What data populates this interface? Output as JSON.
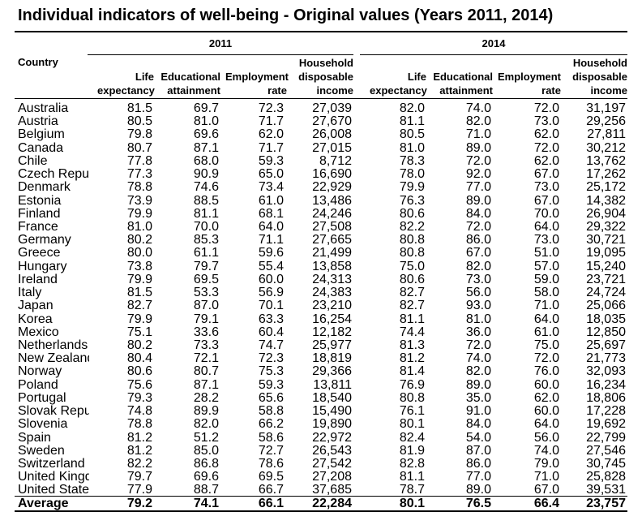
{
  "title": "Individual indicators of well-being - Original values (Years 2011, 2014)",
  "years": [
    "2011",
    "2014"
  ],
  "country_header": "Country",
  "column_headers": [
    [
      "Life",
      "expectancy"
    ],
    [
      "Educational",
      "attainment"
    ],
    [
      "Employment",
      "rate"
    ],
    [
      "Household",
      "disposable",
      "income"
    ]
  ],
  "rows": [
    [
      "Australia",
      "81.5",
      "69.7",
      "72.3",
      "27,039",
      "82.0",
      "74.0",
      "72.0",
      "31,197"
    ],
    [
      "Austria",
      "80.5",
      "81.0",
      "71.7",
      "27,670",
      "81.1",
      "82.0",
      "73.0",
      "29,256"
    ],
    [
      "Belgium",
      "79.8",
      "69.6",
      "62.0",
      "26,008",
      "80.5",
      "71.0",
      "62.0",
      "27,811"
    ],
    [
      "Canada",
      "80.7",
      "87.1",
      "71.7",
      "27,015",
      "81.0",
      "89.0",
      "72.0",
      "30,212"
    ],
    [
      "Chile",
      "77.8",
      "68.0",
      "59.3",
      "8,712",
      "78.3",
      "72.0",
      "62.0",
      "13,762"
    ],
    [
      "Czech Republ",
      "77.3",
      "90.9",
      "65.0",
      "16,690",
      "78.0",
      "92.0",
      "67.0",
      "17,262"
    ],
    [
      "Denmark",
      "78.8",
      "74.6",
      "73.4",
      "22,929",
      "79.9",
      "77.0",
      "73.0",
      "25,172"
    ],
    [
      "Estonia",
      "73.9",
      "88.5",
      "61.0",
      "13,486",
      "76.3",
      "89.0",
      "67.0",
      "14,382"
    ],
    [
      "Finland",
      "79.9",
      "81.1",
      "68.1",
      "24,246",
      "80.6",
      "84.0",
      "70.0",
      "26,904"
    ],
    [
      "France",
      "81.0",
      "70.0",
      "64.0",
      "27,508",
      "82.2",
      "72.0",
      "64.0",
      "29,322"
    ],
    [
      "Germany",
      "80.2",
      "85.3",
      "71.1",
      "27,665",
      "80.8",
      "86.0",
      "73.0",
      "30,721"
    ],
    [
      "Greece",
      "80.0",
      "61.1",
      "59.6",
      "21,499",
      "80.8",
      "67.0",
      "51.0",
      "19,095"
    ],
    [
      "Hungary",
      "73.8",
      "79.7",
      "55.4",
      "13,858",
      "75.0",
      "82.0",
      "57.0",
      "15,240"
    ],
    [
      "Ireland",
      "79.9",
      "69.5",
      "60.0",
      "24,313",
      "80.6",
      "73.0",
      "59.0",
      "23,721"
    ],
    [
      "Italy",
      "81.5",
      "53.3",
      "56.9",
      "24,383",
      "82.7",
      "56.0",
      "58.0",
      "24,724"
    ],
    [
      "Japan",
      "82.7",
      "87.0",
      "70.1",
      "23,210",
      "82.7",
      "93.0",
      "71.0",
      "25,066"
    ],
    [
      "Korea",
      "79.9",
      "79.1",
      "63.3",
      "16,254",
      "81.1",
      "81.0",
      "64.0",
      "18,035"
    ],
    [
      "Mexico",
      "75.1",
      "33.6",
      "60.4",
      "12,182",
      "74.4",
      "36.0",
      "61.0",
      "12,850"
    ],
    [
      "Netherlands",
      "80.2",
      "73.3",
      "74.7",
      "25,977",
      "81.3",
      "72.0",
      "75.0",
      "25,697"
    ],
    [
      "New Zealand",
      "80.4",
      "72.1",
      "72.3",
      "18,819",
      "81.2",
      "74.0",
      "72.0",
      "21,773"
    ],
    [
      "Norway",
      "80.6",
      "80.7",
      "75.3",
      "29,366",
      "81.4",
      "82.0",
      "76.0",
      "32,093"
    ],
    [
      "Poland",
      "75.6",
      "87.1",
      "59.3",
      "13,811",
      "76.9",
      "89.0",
      "60.0",
      "16,234"
    ],
    [
      "Portugal",
      "79.3",
      "28.2",
      "65.6",
      "18,540",
      "80.8",
      "35.0",
      "62.0",
      "18,806"
    ],
    [
      "Slovak Repub",
      "74.8",
      "89.9",
      "58.8",
      "15,490",
      "76.1",
      "91.0",
      "60.0",
      "17,228"
    ],
    [
      "Slovenia",
      "78.8",
      "82.0",
      "66.2",
      "19,890",
      "80.1",
      "84.0",
      "64.0",
      "19,692"
    ],
    [
      "Spain",
      "81.2",
      "51.2",
      "58.6",
      "22,972",
      "82.4",
      "54.0",
      "56.0",
      "22,799"
    ],
    [
      "Sweden",
      "81.2",
      "85.0",
      "72.7",
      "26,543",
      "81.9",
      "87.0",
      "74.0",
      "27,546"
    ],
    [
      "Switzerland",
      "82.2",
      "86.8",
      "78.6",
      "27,542",
      "82.8",
      "86.0",
      "79.0",
      "30,745"
    ],
    [
      "United Kingdo",
      "79.7",
      "69.6",
      "69.5",
      "27,208",
      "81.1",
      "77.0",
      "71.0",
      "25,828"
    ],
    [
      "United States",
      "77.9",
      "88.7",
      "66.7",
      "37,685",
      "78.7",
      "89.0",
      "67.0",
      "39,531"
    ]
  ],
  "average": [
    "Average",
    "79.2",
    "74.1",
    "66.1",
    "22,284",
    "80.1",
    "76.5",
    "66.4",
    "23,757"
  ]
}
